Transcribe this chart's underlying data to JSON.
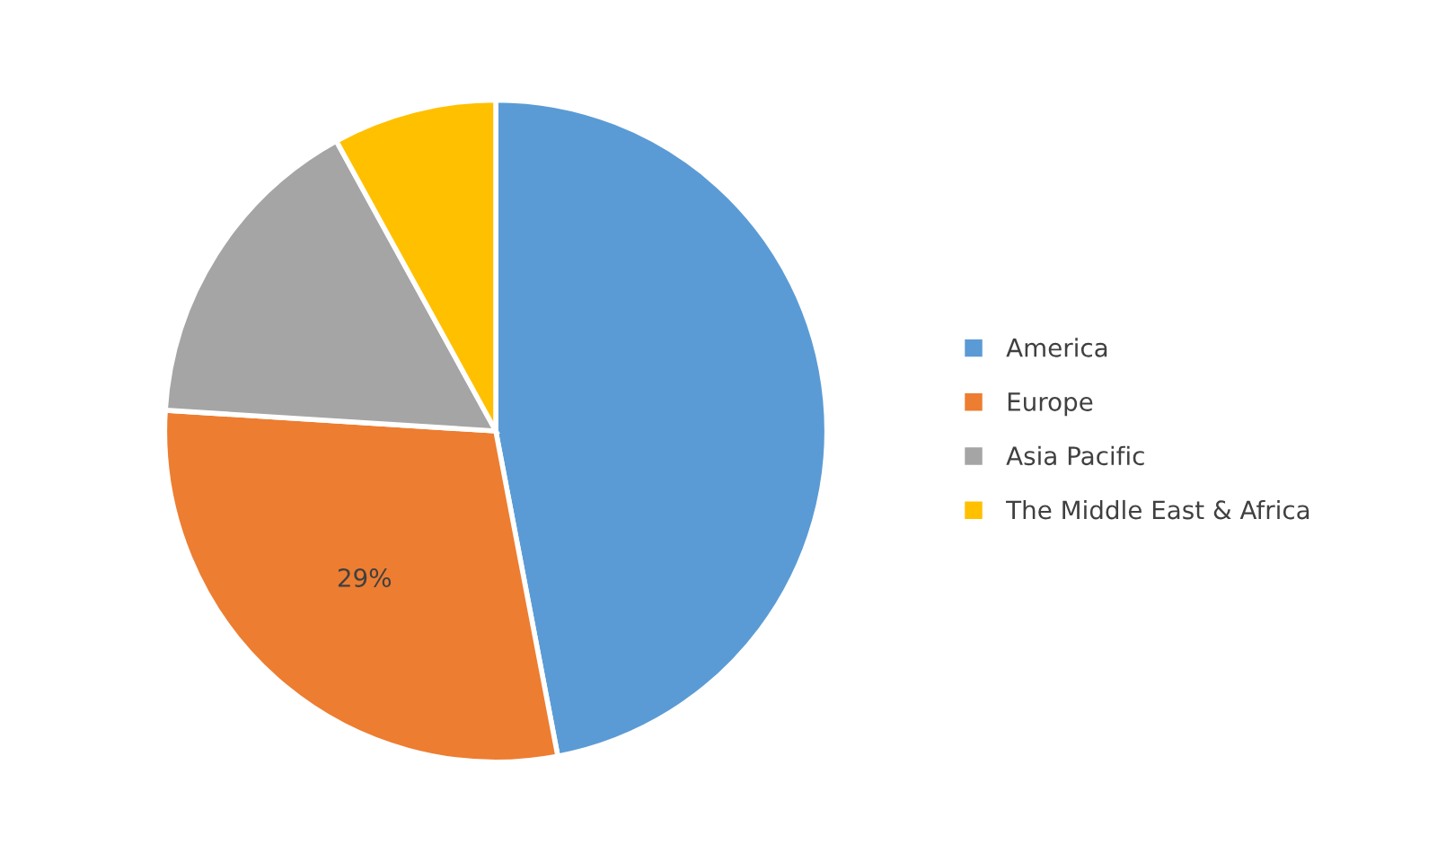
{
  "chart_data": {
    "type": "pie",
    "categories": [
      "America",
      "Europe",
      "Asia Pacific",
      "The Middle East & Africa"
    ],
    "values": [
      47,
      29,
      16,
      8
    ],
    "colors": [
      "#5b9bd5",
      "#ed7d31",
      "#a5a5a5",
      "#ffc000"
    ],
    "value_labels": [
      null,
      "29%",
      null,
      null
    ],
    "legend": "right"
  }
}
